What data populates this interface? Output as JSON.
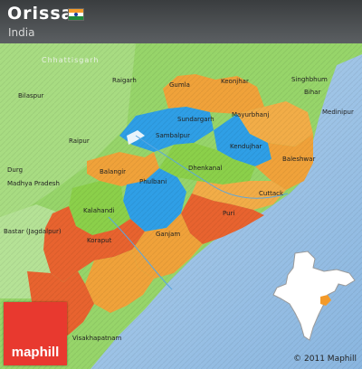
{
  "header": {
    "title": "Orissa",
    "subtitle": "India"
  },
  "region_labels": [
    "Gumla",
    "Keonjhar",
    "Sundargarh",
    "Sambalpur",
    "Mayurbhanj",
    "Kendujhar",
    "Balangir",
    "Dhenkanal",
    "Phulbani",
    "Kalahandi",
    "Ganjam",
    "Koraput",
    "Cuttack",
    "Puri",
    "Baleshwar",
    "Bihar",
    "Raigarh",
    "Bilaspur",
    "Raipur",
    "Durg",
    "Madhya Pradesh",
    "Bastar (Jagdalpur)",
    "Medinipur",
    "Singhbhum",
    "Visakhapatnam"
  ],
  "faint_label": "Chhattisgarh",
  "copyright": "© 2011 Maphill",
  "logo_text": "maphill",
  "colors": {
    "sea": "#9fc4e6",
    "land_green": "#8fd063",
    "orissa_orange": "#f0a23a",
    "orissa_blue": "#2f9fe6",
    "orissa_red": "#e8632f",
    "header": "#46494c",
    "logo": "#e8392f",
    "inset_highlight": "#f39a2a"
  }
}
